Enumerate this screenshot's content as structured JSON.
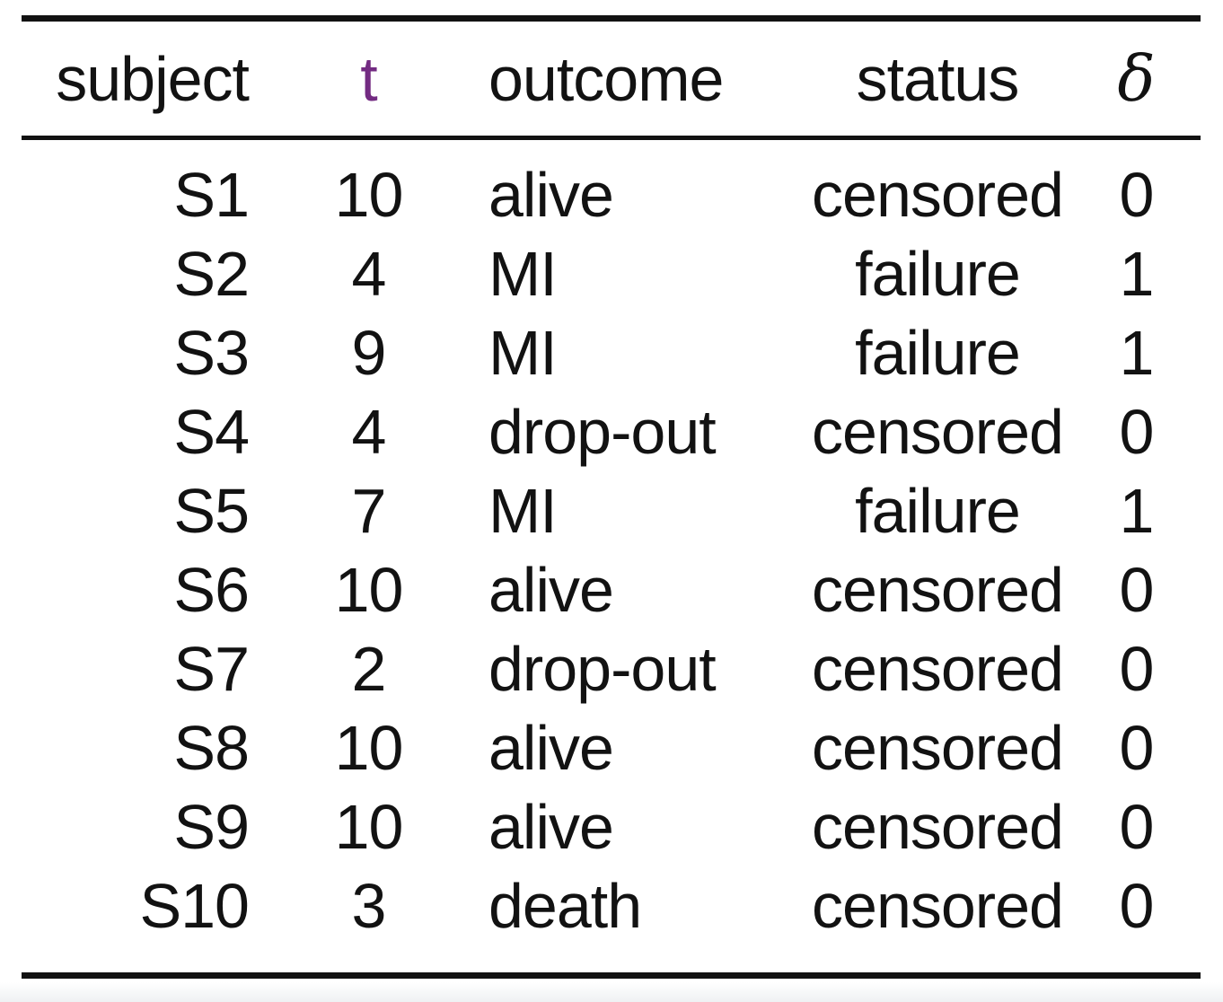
{
  "colors": {
    "accent_t": "#732b82",
    "rule": "#121212",
    "text": "#121212",
    "background": "#ffffff",
    "bottom_fade": "#eff1f3"
  },
  "table": {
    "columns": [
      {
        "key": "subject",
        "label": "subject",
        "align": "right",
        "math": false,
        "color": null
      },
      {
        "key": "t",
        "label": "t",
        "align": "center",
        "math": false,
        "color": "#732b82"
      },
      {
        "key": "outcome",
        "label": "outcome",
        "align": "left",
        "math": false,
        "color": null
      },
      {
        "key": "status",
        "label": "status",
        "align": "center",
        "math": false,
        "color": null
      },
      {
        "key": "delta",
        "label": "δ",
        "align": "center",
        "math": true,
        "color": null
      }
    ],
    "rows": [
      [
        "S1",
        "10",
        "alive",
        "censored",
        "0"
      ],
      [
        "S2",
        "4",
        "MI",
        "failure",
        "1"
      ],
      [
        "S3",
        "9",
        "MI",
        "failure",
        "1"
      ],
      [
        "S4",
        "4",
        "drop-out",
        "censored",
        "0"
      ],
      [
        "S5",
        "7",
        "MI",
        "failure",
        "1"
      ],
      [
        "S6",
        "10",
        "alive",
        "censored",
        "0"
      ],
      [
        "S7",
        "2",
        "drop-out",
        "censored",
        "0"
      ],
      [
        "S8",
        "10",
        "alive",
        "censored",
        "0"
      ],
      [
        "S9",
        "10",
        "alive",
        "censored",
        "0"
      ],
      [
        "S10",
        "3",
        "death",
        "censored",
        "0"
      ]
    ]
  },
  "chart_data": {
    "type": "table",
    "columns": [
      "subject",
      "t",
      "outcome",
      "status",
      "δ"
    ],
    "rows": [
      [
        "S1",
        10,
        "alive",
        "censored",
        0
      ],
      [
        "S2",
        4,
        "MI",
        "failure",
        1
      ],
      [
        "S3",
        9,
        "MI",
        "failure",
        1
      ],
      [
        "S4",
        4,
        "drop-out",
        "censored",
        0
      ],
      [
        "S5",
        7,
        "MI",
        "failure",
        1
      ],
      [
        "S6",
        10,
        "alive",
        "censored",
        0
      ],
      [
        "S7",
        2,
        "drop-out",
        "censored",
        0
      ],
      [
        "S8",
        10,
        "alive",
        "censored",
        0
      ],
      [
        "S9",
        10,
        "alive",
        "censored",
        0
      ],
      [
        "S10",
        3,
        "death",
        "censored",
        0
      ]
    ]
  }
}
